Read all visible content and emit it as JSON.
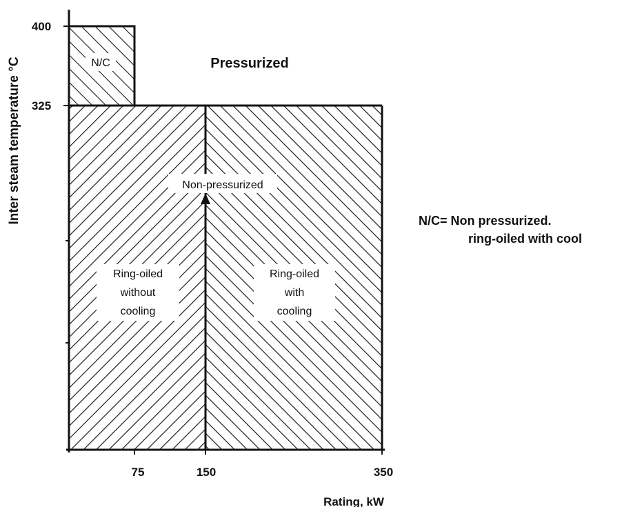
{
  "chart_data": {
    "type": "region-diagram",
    "title": "",
    "xlabel": "Rating, kW",
    "ylabel": "Inter steam temperature °C",
    "x_ticks": [
      "75",
      "150",
      "350"
    ],
    "y_ticks": [
      "400",
      "325"
    ],
    "regions": [
      {
        "id": "nc",
        "label": "N/C",
        "x_range": [
          0,
          75
        ],
        "y_range": [
          325,
          400
        ]
      },
      {
        "id": "pressurized",
        "label": "Pressurized"
      },
      {
        "id": "non-pressurized",
        "label": "Non-pressurized"
      },
      {
        "id": "ring-oiled-without-cooling",
        "lines": [
          "Ring-oiled",
          "without",
          "cooling"
        ],
        "x_range": [
          0,
          150
        ],
        "y_range": [
          null,
          325
        ]
      },
      {
        "id": "ring-oiled-with-cooling",
        "lines": [
          "Ring-oiled",
          "with",
          "cooling"
        ],
        "x_range": [
          150,
          350
        ],
        "y_range": [
          null,
          325
        ]
      }
    ]
  },
  "legend_note": {
    "line1": "N/C= Non pressurized.",
    "line2": "ring-oiled with cool"
  }
}
